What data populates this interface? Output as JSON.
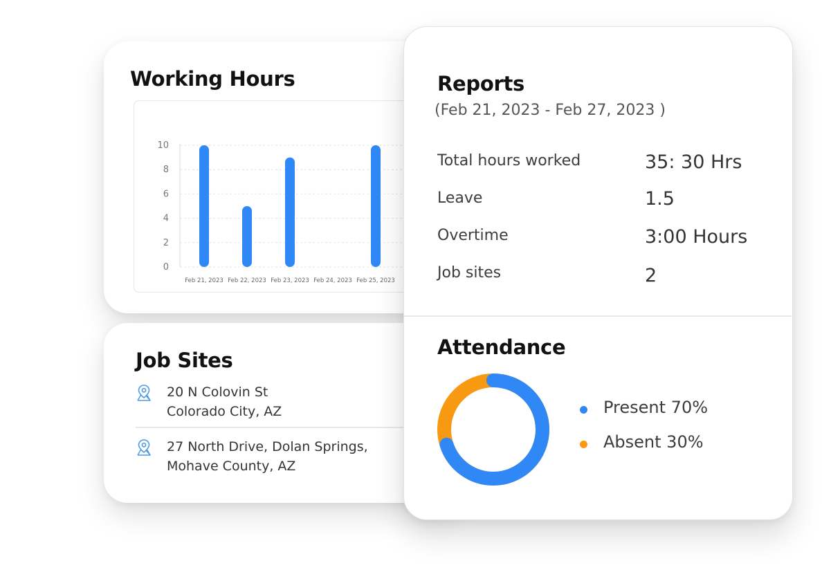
{
  "working_hours": {
    "title": "Working Hours"
  },
  "chart_data": {
    "type": "bar",
    "categories": [
      "Feb 21, 2023",
      "Feb 22, 2023",
      "Feb 23, 2023",
      "Feb 24, 2023",
      "Feb 25, 2023"
    ],
    "values": [
      10,
      5,
      9,
      0,
      10
    ],
    "yticks": [
      "0",
      "2",
      "4",
      "6",
      "8",
      "10"
    ],
    "ylim": [
      0,
      10
    ],
    "grid": true,
    "bar_color": "#2f88f5"
  },
  "job_sites": {
    "title": "Job Sites",
    "items": [
      {
        "line1": "20 N Colovin St",
        "line2": "Colorado City, AZ",
        "icon": "map-pin-icon"
      },
      {
        "line1": "27 North Drive, Dolan Springs,",
        "line2": "Mohave County, AZ",
        "icon": "map-pin-icon"
      }
    ],
    "icon_color": "#4a9ae8"
  },
  "reports": {
    "title": "Reports",
    "date_range": "(Feb 21, 2023 - Feb 27, 2023 )",
    "stats": [
      {
        "label": "Total hours worked",
        "value": "35: 30 Hrs"
      },
      {
        "label": "Leave",
        "value": "1.5"
      },
      {
        "label": "Overtime",
        "value": "3:00 Hours"
      },
      {
        "label": "Job sites",
        "value": "2"
      }
    ]
  },
  "attendance": {
    "title": "Attendance",
    "legend": [
      {
        "label": "Present 70%",
        "percent": 70,
        "color": "#2f88f5"
      },
      {
        "label": "Absent 30%",
        "percent": 30,
        "color": "#f79a12"
      }
    ]
  }
}
